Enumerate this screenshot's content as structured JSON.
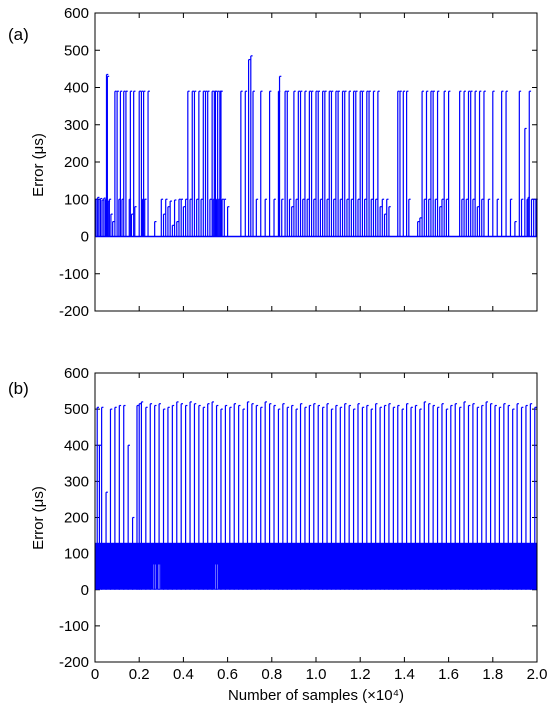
{
  "chart_data": [
    {
      "panel_label": "(a)",
      "type": "line",
      "xlim": [
        0,
        2.0
      ],
      "ylim": [
        -200,
        600
      ],
      "yticks": [
        600,
        500,
        400,
        300,
        200,
        100,
        0,
        -100,
        -200
      ],
      "ylabel": "Error (μs)",
      "xlabel": "",
      "color": "#0000ff",
      "baseline": 0,
      "spikes": [
        {
          "x": 0.005,
          "y": 100
        },
        {
          "x": 0.012,
          "y": 105
        },
        {
          "x": 0.018,
          "y": 100
        },
        {
          "x": 0.025,
          "y": 102
        },
        {
          "x": 0.032,
          "y": 98
        },
        {
          "x": 0.04,
          "y": 103
        },
        {
          "x": 0.047,
          "y": 100
        },
        {
          "x": 0.052,
          "y": 435
        },
        {
          "x": 0.056,
          "y": 430
        },
        {
          "x": 0.06,
          "y": 95
        },
        {
          "x": 0.065,
          "y": 100
        },
        {
          "x": 0.072,
          "y": 60
        },
        {
          "x": 0.08,
          "y": 40
        },
        {
          "x": 0.09,
          "y": 390
        },
        {
          "x": 0.1,
          "y": 390
        },
        {
          "x": 0.108,
          "y": 100
        },
        {
          "x": 0.115,
          "y": 390
        },
        {
          "x": 0.122,
          "y": 100
        },
        {
          "x": 0.13,
          "y": 390
        },
        {
          "x": 0.14,
          "y": 390
        },
        {
          "x": 0.155,
          "y": 100
        },
        {
          "x": 0.16,
          "y": 390
        },
        {
          "x": 0.165,
          "y": 60
        },
        {
          "x": 0.175,
          "y": 390
        },
        {
          "x": 0.18,
          "y": 80
        },
        {
          "x": 0.2,
          "y": 390
        },
        {
          "x": 0.21,
          "y": 390
        },
        {
          "x": 0.215,
          "y": 100
        },
        {
          "x": 0.22,
          "y": 390
        },
        {
          "x": 0.225,
          "y": 100
        },
        {
          "x": 0.24,
          "y": 390
        },
        {
          "x": 0.27,
          "y": 40
        },
        {
          "x": 0.3,
          "y": 100
        },
        {
          "x": 0.31,
          "y": 60
        },
        {
          "x": 0.32,
          "y": 100
        },
        {
          "x": 0.33,
          "y": 80
        },
        {
          "x": 0.34,
          "y": 95
        },
        {
          "x": 0.35,
          "y": 30
        },
        {
          "x": 0.36,
          "y": 98
        },
        {
          "x": 0.37,
          "y": 40
        },
        {
          "x": 0.38,
          "y": 100
        },
        {
          "x": 0.39,
          "y": 100
        },
        {
          "x": 0.4,
          "y": 80
        },
        {
          "x": 0.41,
          "y": 100
        },
        {
          "x": 0.42,
          "y": 390
        },
        {
          "x": 0.43,
          "y": 100
        },
        {
          "x": 0.44,
          "y": 390
        },
        {
          "x": 0.45,
          "y": 390
        },
        {
          "x": 0.46,
          "y": 100
        },
        {
          "x": 0.47,
          "y": 390
        },
        {
          "x": 0.48,
          "y": 100
        },
        {
          "x": 0.49,
          "y": 390
        },
        {
          "x": 0.5,
          "y": 390
        },
        {
          "x": 0.51,
          "y": 390
        },
        {
          "x": 0.52,
          "y": 100
        },
        {
          "x": 0.53,
          "y": 390
        },
        {
          "x": 0.535,
          "y": 100
        },
        {
          "x": 0.54,
          "y": 390
        },
        {
          "x": 0.545,
          "y": 390
        },
        {
          "x": 0.55,
          "y": 100
        },
        {
          "x": 0.555,
          "y": 390
        },
        {
          "x": 0.56,
          "y": 100
        },
        {
          "x": 0.565,
          "y": 390
        },
        {
          "x": 0.57,
          "y": 390
        },
        {
          "x": 0.575,
          "y": 100
        },
        {
          "x": 0.585,
          "y": 100
        },
        {
          "x": 0.6,
          "y": 80
        },
        {
          "x": 0.66,
          "y": 390
        },
        {
          "x": 0.68,
          "y": 390
        },
        {
          "x": 0.695,
          "y": 475
        },
        {
          "x": 0.705,
          "y": 485
        },
        {
          "x": 0.715,
          "y": 390
        },
        {
          "x": 0.73,
          "y": 100
        },
        {
          "x": 0.75,
          "y": 390
        },
        {
          "x": 0.77,
          "y": 100
        },
        {
          "x": 0.79,
          "y": 390
        },
        {
          "x": 0.81,
          "y": 100
        },
        {
          "x": 0.83,
          "y": 390
        },
        {
          "x": 0.835,
          "y": 430
        },
        {
          "x": 0.845,
          "y": 100
        },
        {
          "x": 0.86,
          "y": 390
        },
        {
          "x": 0.87,
          "y": 390
        },
        {
          "x": 0.88,
          "y": 100
        },
        {
          "x": 0.89,
          "y": 80
        },
        {
          "x": 0.9,
          "y": 390
        },
        {
          "x": 0.91,
          "y": 100
        },
        {
          "x": 0.92,
          "y": 390
        },
        {
          "x": 0.93,
          "y": 390
        },
        {
          "x": 0.94,
          "y": 100
        },
        {
          "x": 0.95,
          "y": 390
        },
        {
          "x": 0.96,
          "y": 100
        },
        {
          "x": 0.97,
          "y": 390
        },
        {
          "x": 0.98,
          "y": 390
        },
        {
          "x": 0.99,
          "y": 100
        },
        {
          "x": 1.0,
          "y": 390
        },
        {
          "x": 1.01,
          "y": 390
        },
        {
          "x": 1.02,
          "y": 100
        },
        {
          "x": 1.03,
          "y": 390
        },
        {
          "x": 1.04,
          "y": 390
        },
        {
          "x": 1.05,
          "y": 100
        },
        {
          "x": 1.06,
          "y": 390
        },
        {
          "x": 1.07,
          "y": 390
        },
        {
          "x": 1.08,
          "y": 100
        },
        {
          "x": 1.09,
          "y": 390
        },
        {
          "x": 1.1,
          "y": 390
        },
        {
          "x": 1.11,
          "y": 100
        },
        {
          "x": 1.12,
          "y": 390
        },
        {
          "x": 1.13,
          "y": 390
        },
        {
          "x": 1.14,
          "y": 100
        },
        {
          "x": 1.15,
          "y": 390
        },
        {
          "x": 1.16,
          "y": 100
        },
        {
          "x": 1.17,
          "y": 390
        },
        {
          "x": 1.18,
          "y": 390
        },
        {
          "x": 1.19,
          "y": 100
        },
        {
          "x": 1.2,
          "y": 390
        },
        {
          "x": 1.21,
          "y": 390
        },
        {
          "x": 1.22,
          "y": 100
        },
        {
          "x": 1.23,
          "y": 390
        },
        {
          "x": 1.24,
          "y": 390
        },
        {
          "x": 1.25,
          "y": 100
        },
        {
          "x": 1.26,
          "y": 390
        },
        {
          "x": 1.27,
          "y": 100
        },
        {
          "x": 1.28,
          "y": 390
        },
        {
          "x": 1.29,
          "y": 80
        },
        {
          "x": 1.3,
          "y": 100
        },
        {
          "x": 1.31,
          "y": 60
        },
        {
          "x": 1.32,
          "y": 100
        },
        {
          "x": 1.33,
          "y": 80
        },
        {
          "x": 1.37,
          "y": 390
        },
        {
          "x": 1.38,
          "y": 390
        },
        {
          "x": 1.395,
          "y": 390
        },
        {
          "x": 1.41,
          "y": 390
        },
        {
          "x": 1.42,
          "y": 100
        },
        {
          "x": 1.46,
          "y": 40
        },
        {
          "x": 1.47,
          "y": 50
        },
        {
          "x": 1.48,
          "y": 390
        },
        {
          "x": 1.49,
          "y": 100
        },
        {
          "x": 1.5,
          "y": 390
        },
        {
          "x": 1.51,
          "y": 100
        },
        {
          "x": 1.52,
          "y": 390
        },
        {
          "x": 1.53,
          "y": 390
        },
        {
          "x": 1.54,
          "y": 100
        },
        {
          "x": 1.55,
          "y": 390
        },
        {
          "x": 1.56,
          "y": 80
        },
        {
          "x": 1.57,
          "y": 100
        },
        {
          "x": 1.58,
          "y": 390
        },
        {
          "x": 1.59,
          "y": 100
        },
        {
          "x": 1.6,
          "y": 390
        },
        {
          "x": 1.65,
          "y": 390
        },
        {
          "x": 1.66,
          "y": 100
        },
        {
          "x": 1.67,
          "y": 390
        },
        {
          "x": 1.68,
          "y": 100
        },
        {
          "x": 1.69,
          "y": 390
        },
        {
          "x": 1.7,
          "y": 390
        },
        {
          "x": 1.71,
          "y": 100
        },
        {
          "x": 1.72,
          "y": 390
        },
        {
          "x": 1.73,
          "y": 80
        },
        {
          "x": 1.74,
          "y": 390
        },
        {
          "x": 1.75,
          "y": 100
        },
        {
          "x": 1.76,
          "y": 390
        },
        {
          "x": 1.78,
          "y": 100
        },
        {
          "x": 1.8,
          "y": 390
        },
        {
          "x": 1.82,
          "y": 100
        },
        {
          "x": 1.84,
          "y": 390
        },
        {
          "x": 1.86,
          "y": 390
        },
        {
          "x": 1.88,
          "y": 100
        },
        {
          "x": 1.9,
          "y": 40
        },
        {
          "x": 1.92,
          "y": 390
        },
        {
          "x": 1.93,
          "y": 100
        },
        {
          "x": 1.945,
          "y": 290
        },
        {
          "x": 1.955,
          "y": 100
        },
        {
          "x": 1.96,
          "y": 105
        },
        {
          "x": 1.965,
          "y": 390
        },
        {
          "x": 1.975,
          "y": 100
        },
        {
          "x": 1.985,
          "y": 100
        },
        {
          "x": 1.995,
          "y": 100
        }
      ]
    },
    {
      "panel_label": "(b)",
      "type": "line",
      "xlim": [
        0,
        2.0
      ],
      "ylim": [
        -200,
        600
      ],
      "xticks": [
        "0",
        "0.2",
        "0.4",
        "0.6",
        "0.8",
        "1.0",
        "1.2",
        "1.4",
        "1.6",
        "1.8",
        "2.0"
      ],
      "yticks": [
        600,
        500,
        400,
        300,
        200,
        100,
        0,
        -100,
        -200
      ],
      "ylabel": "Error (μs)",
      "xlabel": "Number of samples (×10⁴)",
      "color": "#0000ff",
      "band": [
        0,
        130
      ],
      "spikes": [
        {
          "x": 0.01,
          "y": 505
        },
        {
          "x": 0.02,
          "y": 400
        },
        {
          "x": 0.03,
          "y": 505
        },
        {
          "x": 0.05,
          "y": 270
        },
        {
          "x": 0.07,
          "y": 500
        },
        {
          "x": 0.09,
          "y": 505
        },
        {
          "x": 0.11,
          "y": 510
        },
        {
          "x": 0.13,
          "y": 510
        },
        {
          "x": 0.15,
          "y": 400
        },
        {
          "x": 0.17,
          "y": 200
        },
        {
          "x": 0.19,
          "y": 510
        },
        {
          "x": 0.2,
          "y": 515
        },
        {
          "x": 0.21,
          "y": 520
        },
        {
          "x": 0.23,
          "y": 505
        },
        {
          "x": 0.25,
          "y": 515
        },
        {
          "x": 0.27,
          "y": 510
        },
        {
          "x": 0.29,
          "y": 515
        },
        {
          "x": 0.31,
          "y": 500
        },
        {
          "x": 0.33,
          "y": 505
        },
        {
          "x": 0.35,
          "y": 510
        },
        {
          "x": 0.37,
          "y": 520
        },
        {
          "x": 0.39,
          "y": 515
        },
        {
          "x": 0.41,
          "y": 510
        },
        {
          "x": 0.43,
          "y": 520
        },
        {
          "x": 0.45,
          "y": 515
        },
        {
          "x": 0.47,
          "y": 510
        },
        {
          "x": 0.49,
          "y": 505
        },
        {
          "x": 0.51,
          "y": 515
        },
        {
          "x": 0.53,
          "y": 520
        },
        {
          "x": 0.55,
          "y": 510
        },
        {
          "x": 0.57,
          "y": 500
        },
        {
          "x": 0.59,
          "y": 510
        },
        {
          "x": 0.61,
          "y": 505
        },
        {
          "x": 0.63,
          "y": 515
        },
        {
          "x": 0.65,
          "y": 510
        },
        {
          "x": 0.67,
          "y": 500
        },
        {
          "x": 0.69,
          "y": 520
        },
        {
          "x": 0.71,
          "y": 515
        },
        {
          "x": 0.73,
          "y": 510
        },
        {
          "x": 0.75,
          "y": 505
        },
        {
          "x": 0.77,
          "y": 520
        },
        {
          "x": 0.79,
          "y": 515
        },
        {
          "x": 0.81,
          "y": 510
        },
        {
          "x": 0.83,
          "y": 500
        },
        {
          "x": 0.85,
          "y": 515
        },
        {
          "x": 0.87,
          "y": 505
        },
        {
          "x": 0.89,
          "y": 510
        },
        {
          "x": 0.91,
          "y": 500
        },
        {
          "x": 0.93,
          "y": 515
        },
        {
          "x": 0.95,
          "y": 505
        },
        {
          "x": 0.97,
          "y": 510
        },
        {
          "x": 0.99,
          "y": 515
        },
        {
          "x": 1.01,
          "y": 510
        },
        {
          "x": 1.03,
          "y": 505
        },
        {
          "x": 1.05,
          "y": 515
        },
        {
          "x": 1.07,
          "y": 500
        },
        {
          "x": 1.09,
          "y": 510
        },
        {
          "x": 1.11,
          "y": 505
        },
        {
          "x": 1.13,
          "y": 515
        },
        {
          "x": 1.15,
          "y": 510
        },
        {
          "x": 1.17,
          "y": 500
        },
        {
          "x": 1.19,
          "y": 515
        },
        {
          "x": 1.21,
          "y": 505
        },
        {
          "x": 1.23,
          "y": 510
        },
        {
          "x": 1.25,
          "y": 500
        },
        {
          "x": 1.27,
          "y": 515
        },
        {
          "x": 1.29,
          "y": 505
        },
        {
          "x": 1.31,
          "y": 510
        },
        {
          "x": 1.33,
          "y": 515
        },
        {
          "x": 1.35,
          "y": 505
        },
        {
          "x": 1.37,
          "y": 510
        },
        {
          "x": 1.39,
          "y": 500
        },
        {
          "x": 1.41,
          "y": 515
        },
        {
          "x": 1.43,
          "y": 505
        },
        {
          "x": 1.45,
          "y": 510
        },
        {
          "x": 1.47,
          "y": 500
        },
        {
          "x": 1.49,
          "y": 520
        },
        {
          "x": 1.51,
          "y": 515
        },
        {
          "x": 1.53,
          "y": 510
        },
        {
          "x": 1.55,
          "y": 505
        },
        {
          "x": 1.57,
          "y": 515
        },
        {
          "x": 1.59,
          "y": 500
        },
        {
          "x": 1.61,
          "y": 510
        },
        {
          "x": 1.63,
          "y": 515
        },
        {
          "x": 1.65,
          "y": 505
        },
        {
          "x": 1.67,
          "y": 520
        },
        {
          "x": 1.69,
          "y": 510
        },
        {
          "x": 1.71,
          "y": 515
        },
        {
          "x": 1.73,
          "y": 505
        },
        {
          "x": 1.75,
          "y": 510
        },
        {
          "x": 1.77,
          "y": 520
        },
        {
          "x": 1.79,
          "y": 515
        },
        {
          "x": 1.81,
          "y": 510
        },
        {
          "x": 1.83,
          "y": 505
        },
        {
          "x": 1.85,
          "y": 515
        },
        {
          "x": 1.87,
          "y": 510
        },
        {
          "x": 1.89,
          "y": 500
        },
        {
          "x": 1.91,
          "y": 515
        },
        {
          "x": 1.93,
          "y": 505
        },
        {
          "x": 1.95,
          "y": 510
        },
        {
          "x": 1.97,
          "y": 515
        },
        {
          "x": 1.99,
          "y": 505
        }
      ]
    }
  ]
}
